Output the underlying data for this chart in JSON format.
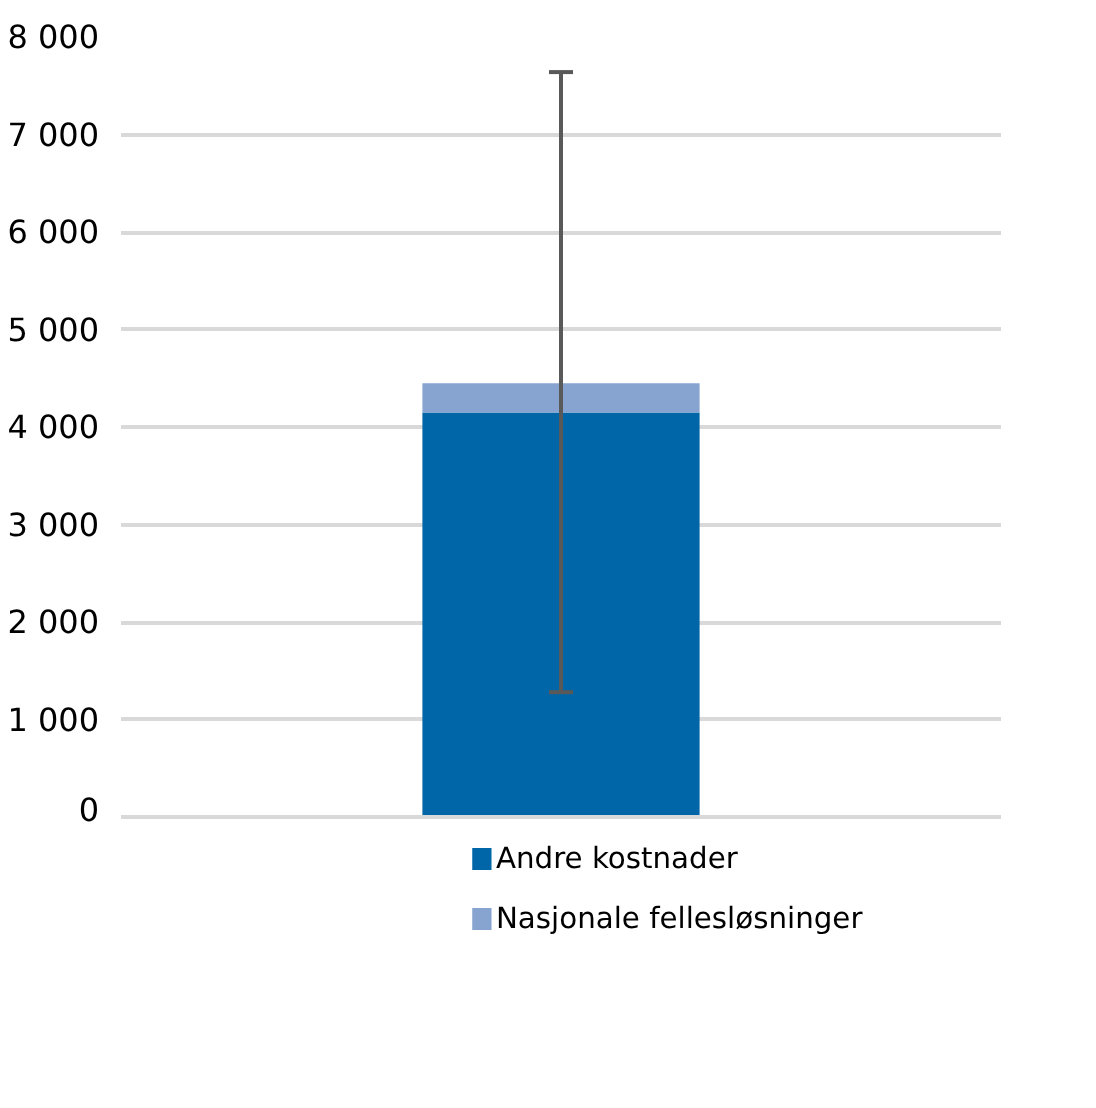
{
  "chart_data": {
    "type": "bar",
    "stacked": true,
    "categories": [
      null
    ],
    "series": [
      {
        "name": "Andre kostnader",
        "color": "#0066a8",
        "values": [
          4150
        ]
      },
      {
        "name": "Nasjonale fellesløsninger",
        "color": "#86a4cf",
        "values": [
          300
        ],
        "errors": [
          [
            1280,
            7640
          ]
        ]
      }
    ],
    "ylim": [
      0,
      8000
    ],
    "yticks": [
      {
        "value": 0,
        "label": "0"
      },
      {
        "value": 1000,
        "label": "1 000"
      },
      {
        "value": 2000,
        "label": "2 000"
      },
      {
        "value": 3000,
        "label": "3 000"
      },
      {
        "value": 4000,
        "label": "4 000"
      },
      {
        "value": 5000,
        "label": "5 000"
      },
      {
        "value": 6000,
        "label": "6 000"
      },
      {
        "value": 7000,
        "label": "7 000"
      },
      {
        "value": 8000,
        "label": "8 000"
      }
    ],
    "grid": "y",
    "legend": "bottom"
  }
}
